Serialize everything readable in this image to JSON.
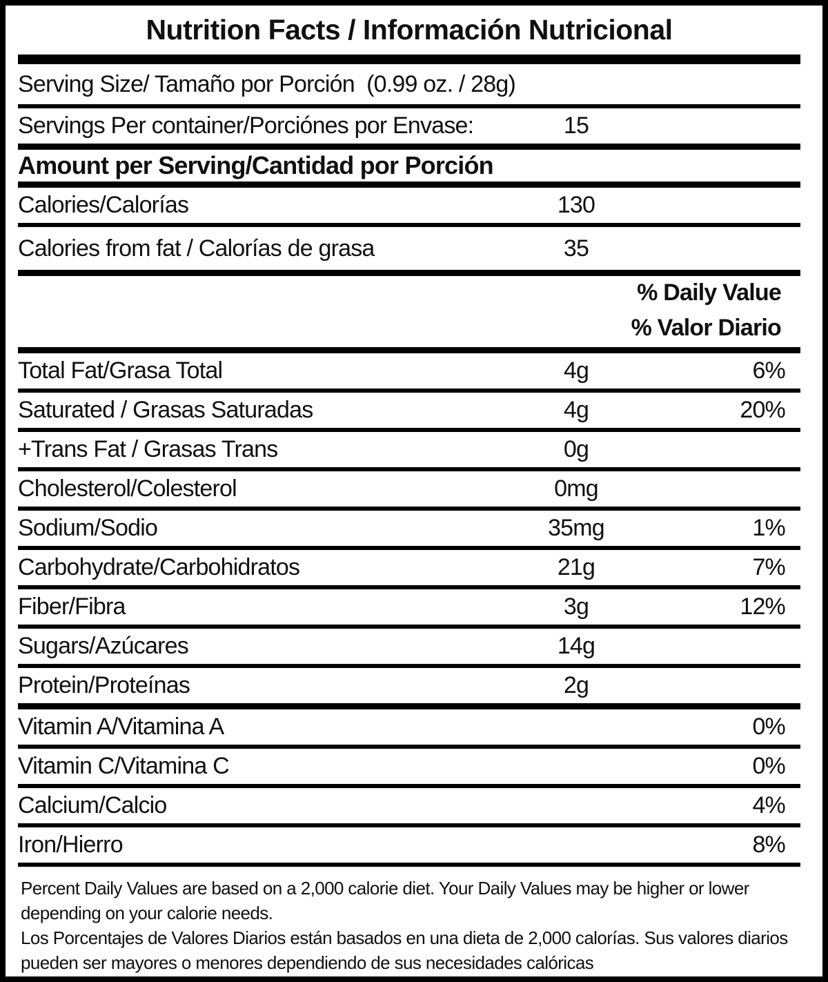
{
  "title": "Nutrition Facts / Información Nutricional",
  "serving": {
    "serving_size_line": "Serving Size/ Tamaño por Porción  (0.99 oz. / 28g)",
    "servings_per_container_label": "Servings Per container/Porciónes por Envase:",
    "servings_per_container_value": "15"
  },
  "amount_header": "Amount per Serving/Cantidad por Porción",
  "calories_rows": [
    {
      "label": "Calories/Calorías",
      "value": "130"
    },
    {
      "label": "Calories from fat / Calorías de grasa",
      "value": "35"
    }
  ],
  "daily_value_header_en": "% Daily Value",
  "daily_value_header_es": "% Valor Diario",
  "nutrients": [
    {
      "label": "Total Fat/Grasa Total",
      "value": "4g",
      "pct": "6%"
    },
    {
      "label": "Saturated / Grasas Saturadas",
      "value": "4g",
      "pct": "20%"
    },
    {
      "label": "+Trans Fat / Grasas Trans",
      "value": "0g",
      "pct": ""
    },
    {
      "label": "Cholesterol/Colesterol",
      "value": "0mg",
      "pct": ""
    },
    {
      "label": "Sodium/Sodio",
      "value": "35mg",
      "pct": "1%"
    },
    {
      "label": "Carbohydrate/Carbohidratos",
      "value": "21g",
      "pct": "7%"
    },
    {
      "label": "Fiber/Fibra",
      "value": "3g",
      "pct": "12%"
    },
    {
      "label": "Sugars/Azúcares",
      "value": "14g",
      "pct": ""
    },
    {
      "label": "Protein/Proteínas",
      "value": "2g",
      "pct": ""
    },
    {
      "label": "Vitamin A/Vitamina A",
      "value": "",
      "pct": "0%"
    },
    {
      "label": "Vitamin C/Vitamina C",
      "value": "",
      "pct": "0%"
    },
    {
      "label": "Calcium/Calcio",
      "value": "",
      "pct": "4%"
    },
    {
      "label": "Iron/Hierro",
      "value": "",
      "pct": "8%"
    }
  ],
  "footnote_en": "Percent Daily Values are based on a 2,000 calorie diet. Your Daily Values may be higher or lower depending on your calorie needs.",
  "footnote_es": "Los Porcentajes de Valores Diarios están basados en una dieta de 2,000 calorías. Sus valores diarios pueden ser mayores o menores dependiendo de sus necesidades calóricas",
  "colors": {
    "text": "#101010",
    "rule": "#000000",
    "background": "#ffffff"
  }
}
